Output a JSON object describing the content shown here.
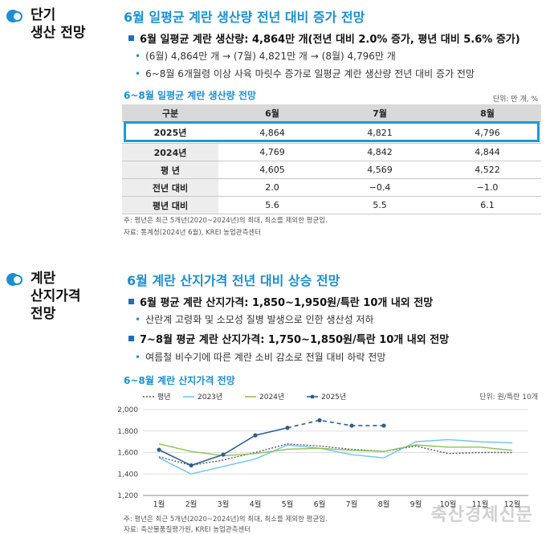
{
  "section1": {
    "title_line1": "단기",
    "title_line2": "생산 전망",
    "headline": "6월 일평균 계란 생산량 전년 대비 증가 전망",
    "main_bullet": "6월 일평균 계란 생산량: 4,864만 개(전년 대비 2.0% 증가, 평년 대비 5.6% 증가)",
    "sub_bullets": [
      "(6월) 4,864만 개 → (7월) 4,821만 개 → (8월) 4,796만 개",
      "6~8월 6개월령 이상 사육 마릿수 증가로 일평균 계란 생산량 전년 대비 증가 전망"
    ],
    "table_title": "6~8월 일평균 계란 생산량 전망",
    "unit": "단위: 만 개, %",
    "table": {
      "headers": [
        "구분",
        "6월",
        "7월",
        "8월"
      ],
      "rows": [
        [
          "2025년",
          "4,864",
          "4,821",
          "4,796"
        ],
        [
          "2024년",
          "4,769",
          "4,842",
          "4,844"
        ],
        [
          "평 년",
          "4,605",
          "4,569",
          "4,522"
        ],
        [
          "전년 대비",
          "2.0",
          "−0.4",
          "−1.0"
        ],
        [
          "평년 대비",
          "5.6",
          "5.5",
          "6.1"
        ]
      ]
    },
    "note": "주: 평년은 최근 5개년(2020~2024년)의 최대, 최소를 제외한 평균임.",
    "source": "자료: 통계청(2024년 6월), KREI 농업관측센터"
  },
  "section2": {
    "title_line1": "계란",
    "title_line2": "산지가격",
    "title_line3": "전망",
    "headline": "6월 계란 산지가격 전년 대비 상승 전망",
    "bullet1": "6월 평균 계란 산지가격: 1,850~1,950원/특란 10개 내외 전망",
    "bullet1_sub": "산란계 고령화 및 소모성 질병 발생으로 인한 생산성 저하",
    "bullet2": "7~8월 평균 계란 산지가격: 1,750~1,850원/특란 10개 내외 전망",
    "bullet2_sub": "여름철 비수기에 따른 계란 소비 감소로 전월 대비 하락 전망",
    "chart_title": "6~8월 계란 산지가격 전망",
    "unit": "단위: 원/특란 10개",
    "note": "주: 평년은 최근 5개년(2020~2024년)의 최대, 최소를 제외한 평균임.",
    "source": "자료: 축산물품질평가원, KREI 농업관측센터"
  },
  "chart_data": {
    "type": "line",
    "categories": [
      "1월",
      "2월",
      "3월",
      "4월",
      "5월",
      "6월",
      "7월",
      "8월",
      "9월",
      "10월",
      "11월",
      "12월"
    ],
    "ylim": [
      1200,
      2000
    ],
    "yticks": [
      "1,200",
      "1,400",
      "1,600",
      "1,800",
      "2,000"
    ],
    "colors": {
      "평년": "#555555",
      "2023년": "#6ec6e6",
      "2024년": "#8cc152",
      "2025년": "#2b5f91"
    },
    "series": [
      {
        "name": "평년",
        "values": [
          1560,
          1480,
          1530,
          1600,
          1680,
          1660,
          1630,
          1610,
          1660,
          1590,
          1600,
          1600
        ]
      },
      {
        "name": "2023년",
        "values": [
          1550,
          1400,
          1470,
          1540,
          1670,
          1640,
          1580,
          1550,
          1700,
          1720,
          1700,
          1690
        ]
      },
      {
        "name": "2024년",
        "values": [
          1680,
          1610,
          1570,
          1590,
          1630,
          1640,
          1620,
          1610,
          1670,
          1650,
          1650,
          1620
        ]
      },
      {
        "name": "2025년",
        "values": [
          1625,
          1480,
          1580,
          1760,
          1830,
          1900,
          1850,
          1850,
          null,
          null,
          null,
          null
        ],
        "forecast_from": 4
      }
    ],
    "legend": "top-left",
    "grid": "horizontal"
  },
  "watermark": "축산경제신문"
}
